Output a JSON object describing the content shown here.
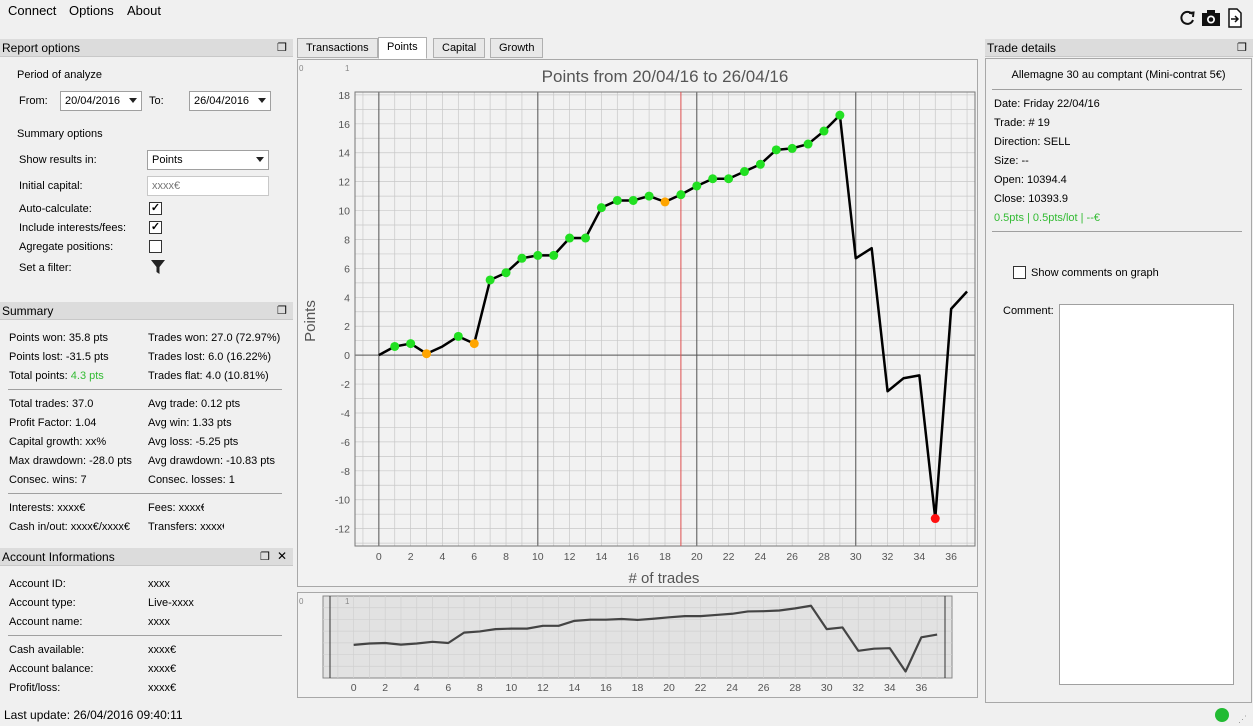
{
  "menu": [
    "Connect",
    "Options",
    "About"
  ],
  "toolbar_icons": [
    "refresh-icon",
    "camera-icon",
    "export-icon"
  ],
  "report_options": {
    "title": "Report options",
    "period_label": "Period of analyze",
    "from_label": "From:",
    "from_value": "20/04/2016",
    "to_label": "To:",
    "to_value": "26/04/2016",
    "summary_options_label": "Summary options",
    "show_results_label": "Show results in:",
    "show_results_value": "Points",
    "initial_capital_label": "Initial capital:",
    "initial_capital_placeholder": "xxxx€",
    "auto_calc_label": "Auto-calculate:",
    "include_fees_label": "Include interests/fees:",
    "aggregate_label": "Agregate positions:",
    "filter_label": "Set a filter:"
  },
  "summary": {
    "title": "Summary",
    "block1": [
      [
        "Points won: 35.8 pts",
        "Trades won: 27.0 (72.97%)"
      ],
      [
        "Points lost: -31.5 pts",
        "Trades lost: 6.0 (16.22%)"
      ]
    ],
    "total_points_label": "Total points:",
    "total_points_value": "4.3 pts",
    "trades_flat": "Trades flat: 4.0 (10.81%)",
    "block2": [
      [
        "Total trades: 37.0",
        "Avg trade: 0.12 pts"
      ],
      [
        "Profit Factor: 1.04",
        "Avg win: 1.33 pts"
      ],
      [
        "Capital growth: xx%",
        "Avg loss: -5.25 pts"
      ],
      [
        "Max drawdown: -28.0 pts",
        "Avg drawdown: -10.83 pts"
      ],
      [
        "Consec. wins: 7",
        "Consec. losses: 1"
      ]
    ],
    "block3": [
      [
        "Interests: xxxx€",
        "Fees: xxxx€"
      ],
      [
        "Cash in/out: xxxx€/xxxx€",
        "Transfers: xxxx€"
      ]
    ]
  },
  "account": {
    "title": "Account Informations",
    "rows1": [
      [
        "Account ID:",
        "xxxx"
      ],
      [
        "Account type:",
        "Live-xxxx"
      ],
      [
        "Account name:",
        "xxxx"
      ]
    ],
    "rows2": [
      [
        "Cash available:",
        "xxxx€"
      ],
      [
        "Account balance:",
        "xxxx€"
      ],
      [
        "Profit/loss:",
        "xxxx€"
      ]
    ]
  },
  "status": {
    "last_update": "Last update: 26/04/2016 09:40:11",
    "connected_color": "#22bb33"
  },
  "tabs": [
    "Transactions",
    "Points",
    "Capital",
    "Growth"
  ],
  "active_tab": "Points",
  "trade_details": {
    "title": "Trade details",
    "instrument": "Allemagne 30 au comptant (Mini-contrat 5€)",
    "lines": [
      "Date: Friday 22/04/16",
      "Trade: # 19",
      "Direction: SELL",
      "Size: --",
      "Open: 10394.4",
      "Close: 10393.9"
    ],
    "result": "0.5pts | 0.5pts/lot | --€",
    "result_color": "#33bb33",
    "show_comments_label": "Show comments on graph",
    "comment_label": "Comment:"
  },
  "chart_data": {
    "type": "line",
    "title": "Points from 20/04/16 to 26/04/16",
    "xlabel": "# of trades",
    "ylabel": "Points",
    "xlim": [
      -1.5,
      37.5
    ],
    "ylim": [
      -13.2,
      18.2
    ],
    "xticks": [
      0,
      2,
      4,
      6,
      8,
      10,
      12,
      14,
      16,
      18,
      20,
      22,
      24,
      26,
      28,
      30,
      32,
      34,
      36
    ],
    "yticks": [
      -12,
      -10,
      -8,
      -6,
      -4,
      -2,
      0,
      2,
      4,
      6,
      8,
      10,
      12,
      14,
      16,
      18
    ],
    "grid": true,
    "selected_trade": 19,
    "series": [
      {
        "x": [
          0,
          1,
          2,
          3,
          4,
          5,
          6,
          7,
          8,
          9,
          10,
          11,
          12,
          13,
          14,
          15,
          16,
          17,
          18,
          19,
          20,
          21,
          22,
          23,
          24,
          25,
          26,
          27,
          28,
          29,
          30,
          31,
          32,
          33,
          34,
          35,
          36,
          37
        ],
        "values": [
          0,
          0.6,
          0.8,
          0.1,
          0.6,
          1.3,
          0.8,
          5.2,
          5.7,
          6.7,
          6.9,
          6.9,
          8.1,
          8.1,
          10.2,
          10.7,
          10.7,
          11.0,
          10.6,
          11.1,
          11.7,
          12.2,
          12.2,
          12.7,
          13.2,
          14.2,
          14.3,
          14.6,
          15.5,
          16.6,
          6.7,
          7.4,
          -2.5,
          -1.6,
          -1.4,
          -11.3,
          3.2,
          4.4
        ]
      }
    ],
    "markers": [
      {
        "x": 1,
        "color": "green"
      },
      {
        "x": 2,
        "color": "green"
      },
      {
        "x": 3,
        "color": "orange"
      },
      {
        "x": 5,
        "color": "green"
      },
      {
        "x": 6,
        "color": "orange"
      },
      {
        "x": 7,
        "color": "green"
      },
      {
        "x": 8,
        "color": "green"
      },
      {
        "x": 9,
        "color": "green"
      },
      {
        "x": 10,
        "color": "green"
      },
      {
        "x": 11,
        "color": "green"
      },
      {
        "x": 12,
        "color": "green"
      },
      {
        "x": 13,
        "color": "green"
      },
      {
        "x": 14,
        "color": "green"
      },
      {
        "x": 15,
        "color": "green"
      },
      {
        "x": 16,
        "color": "green"
      },
      {
        "x": 17,
        "color": "green"
      },
      {
        "x": 18,
        "color": "orange"
      },
      {
        "x": 19,
        "color": "green"
      },
      {
        "x": 20,
        "color": "green"
      },
      {
        "x": 21,
        "color": "green"
      },
      {
        "x": 22,
        "color": "green"
      },
      {
        "x": 23,
        "color": "green"
      },
      {
        "x": 24,
        "color": "green"
      },
      {
        "x": 25,
        "color": "green"
      },
      {
        "x": 26,
        "color": "green"
      },
      {
        "x": 27,
        "color": "green"
      },
      {
        "x": 28,
        "color": "green"
      },
      {
        "x": 29,
        "color": "green"
      },
      {
        "x": 35,
        "color": "red"
      }
    ],
    "colors": {
      "green": "#22e022",
      "orange": "#ffa500",
      "red": "#ff1010",
      "line": "#000000",
      "selection": "#e05050"
    }
  },
  "overview": {
    "xticks": [
      0,
      2,
      4,
      6,
      8,
      10,
      12,
      14,
      16,
      18,
      20,
      22,
      24,
      26,
      28,
      30,
      32,
      34,
      36
    ],
    "corner_labels": [
      "0",
      "1"
    ]
  }
}
